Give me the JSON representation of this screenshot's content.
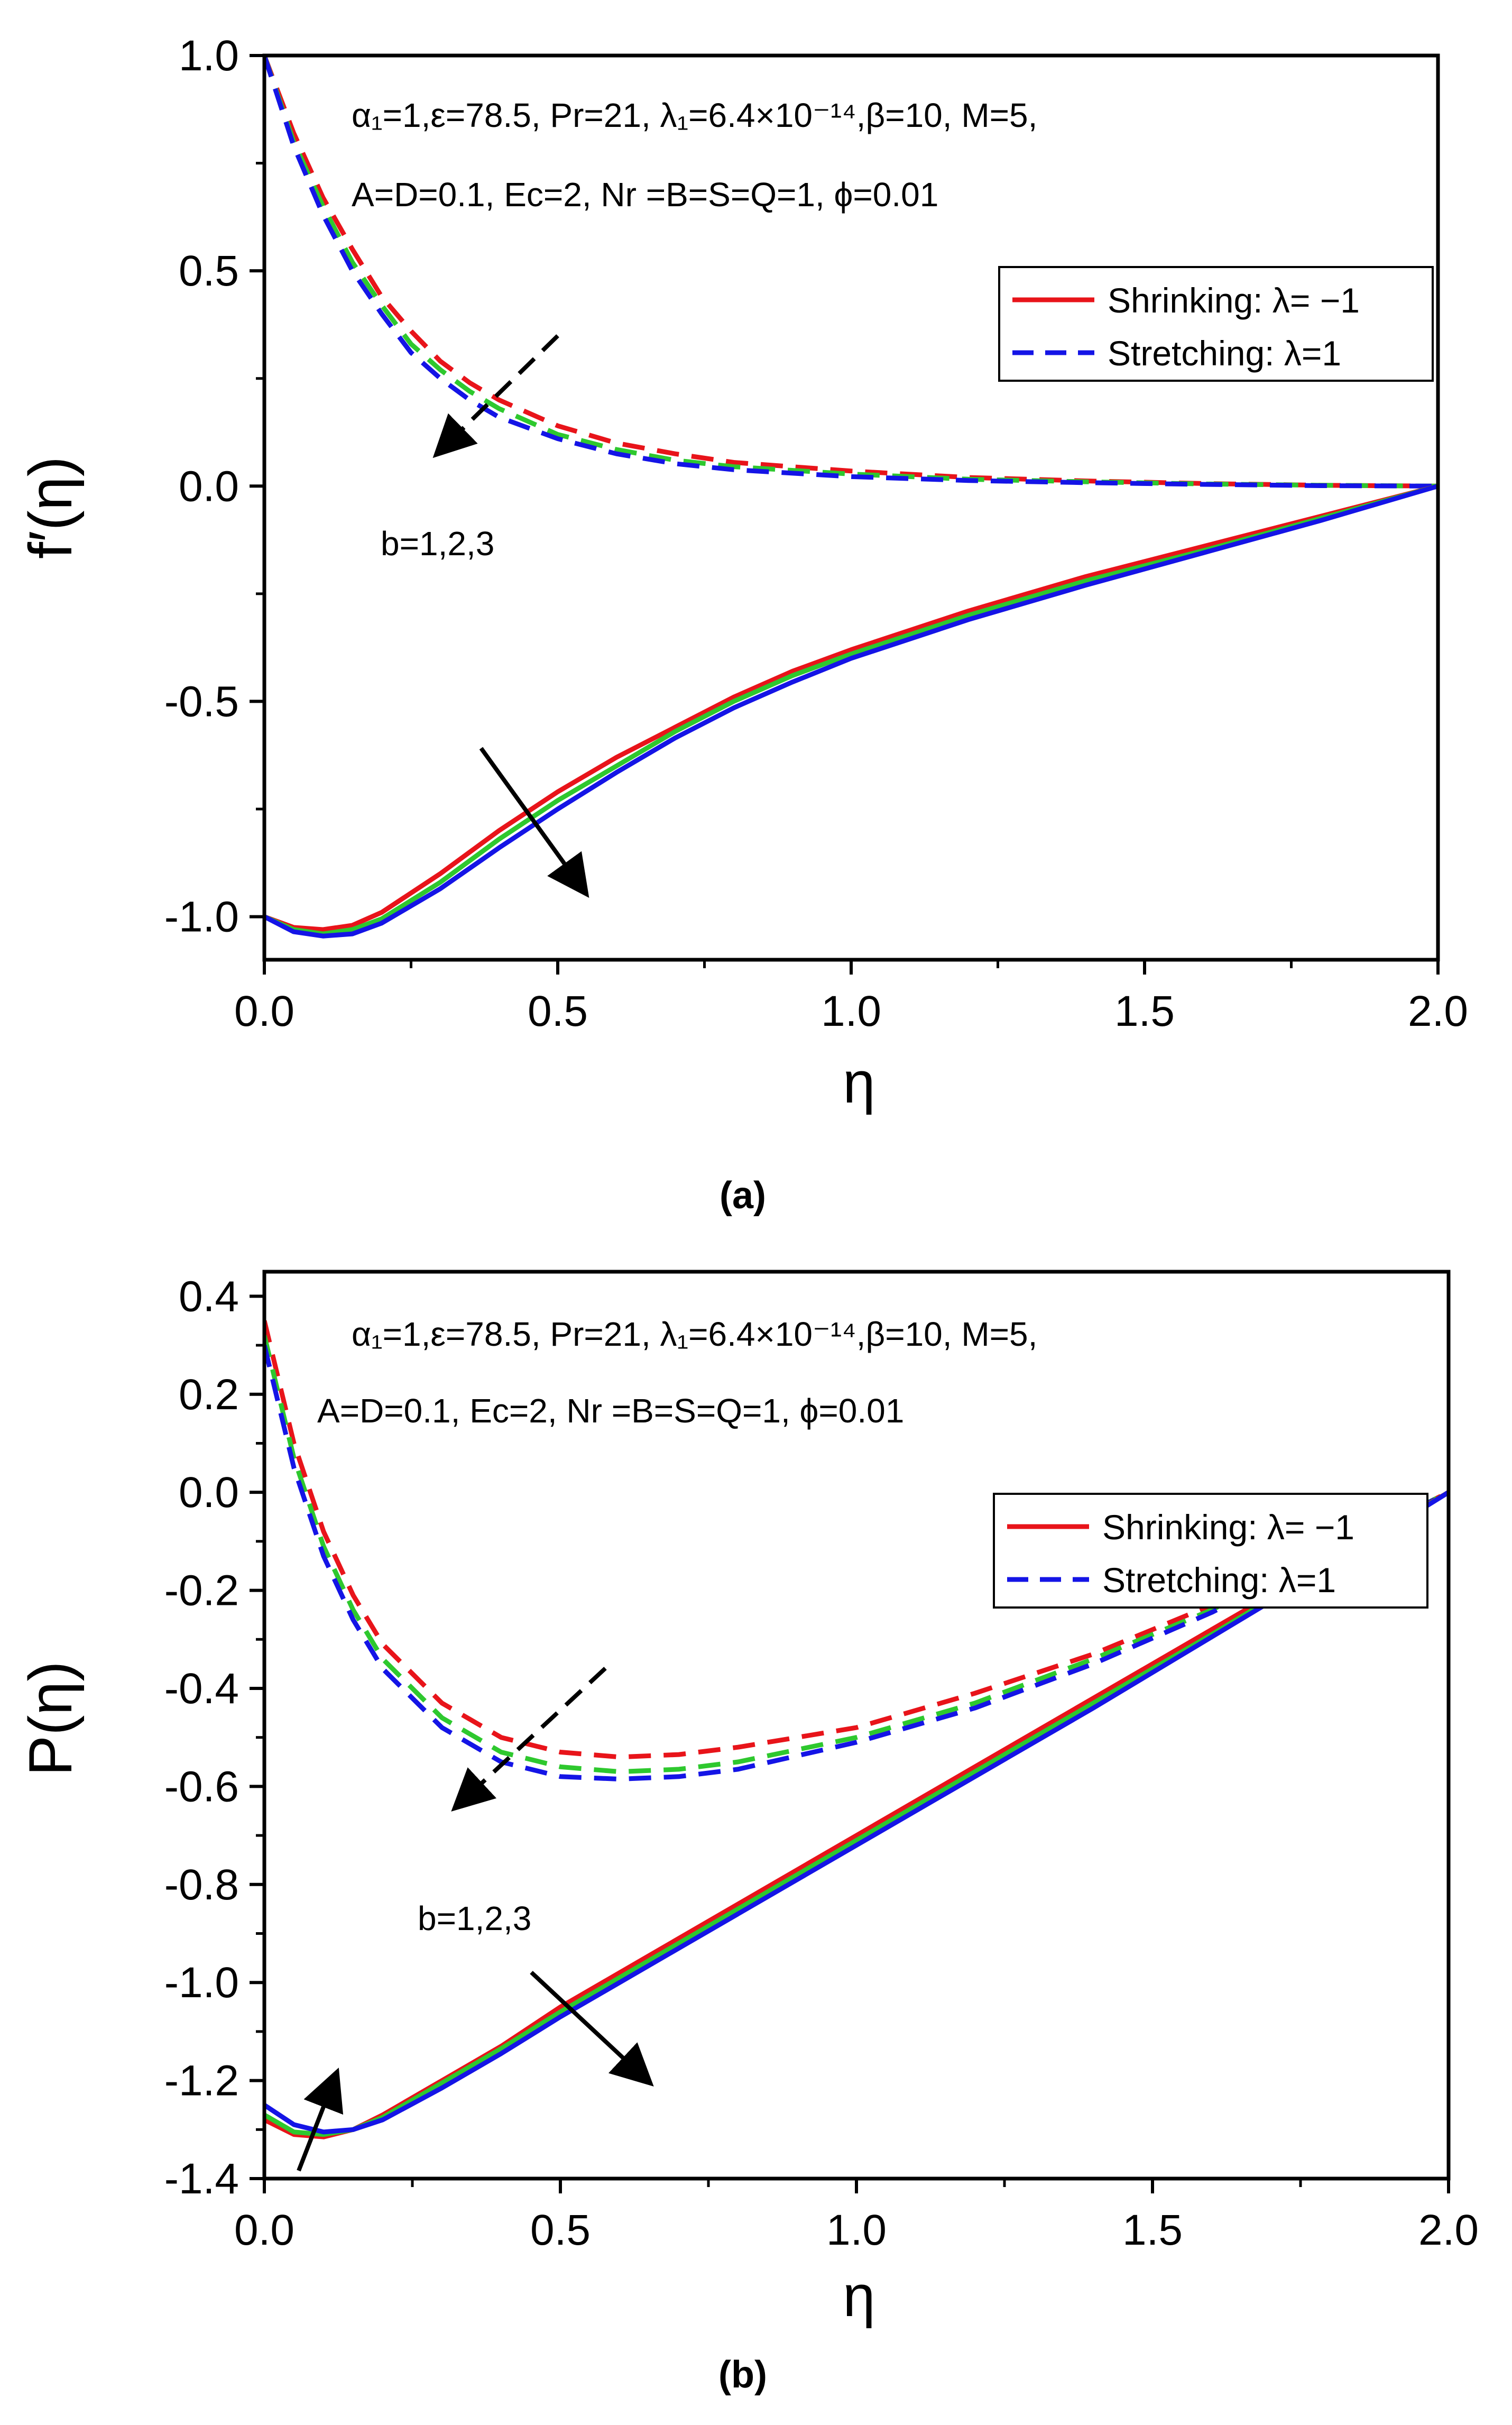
{
  "figure": {
    "colors": {
      "red": "#e8141a",
      "green": "#2ec82e",
      "blue": "#1414e6",
      "axis": "#000000"
    }
  },
  "chart_data": [
    {
      "panel": "a",
      "caption": "(a)",
      "type": "line",
      "title": "",
      "xlabel": "η",
      "ylabel": "f′(η)",
      "xlim": [
        0,
        2
      ],
      "ylim": [
        -1.1,
        1.0
      ],
      "xticks": [
        0,
        0.5,
        1,
        1.5,
        2
      ],
      "xtick_labels": [
        "0.0",
        "0.5",
        "1.0",
        "1.5",
        "2.0"
      ],
      "yticks": [
        -1,
        -0.5,
        0,
        0.5,
        1
      ],
      "ytick_labels": [
        "-1.0",
        "-0.5",
        "0.0",
        "0.5",
        "1.0"
      ],
      "annotation_lines": [
        "α₁=1,ε=78.5, Pr=21, λ₁=6.4×10⁻¹⁴,β=10, M=5,",
        "A=D=0.1, Ec=2, Nr =B=S=Q=1, ϕ=0.01"
      ],
      "param_label": "b=1,2,3",
      "legend": [
        {
          "label": "Shrinking: λ= −1",
          "style": "solid",
          "color": "#e8141a"
        },
        {
          "label": "Stretching: λ=1",
          "style": "dashed",
          "color": "#1414e6"
        }
      ],
      "legend_position": "upper-right",
      "series": [
        {
          "name": "Stretching λ=1, b=1",
          "style": "dashed",
          "color": "#e8141a",
          "x": [
            0,
            0.05,
            0.1,
            0.15,
            0.2,
            0.25,
            0.3,
            0.35,
            0.4,
            0.5,
            0.6,
            0.7,
            0.8,
            1.0,
            1.2,
            1.4,
            1.6,
            1.8,
            2.0
          ],
          "y": [
            1.0,
            0.82,
            0.67,
            0.55,
            0.44,
            0.36,
            0.29,
            0.24,
            0.2,
            0.14,
            0.1,
            0.075,
            0.055,
            0.035,
            0.02,
            0.012,
            0.006,
            0.002,
            0.0
          ]
        },
        {
          "name": "Stretching λ=1, b=2",
          "style": "dashed",
          "color": "#2ec82e",
          "x": [
            0,
            0.05,
            0.1,
            0.15,
            0.2,
            0.25,
            0.3,
            0.35,
            0.4,
            0.5,
            0.6,
            0.7,
            0.8,
            1.0,
            1.2,
            1.4,
            1.6,
            1.8,
            2.0
          ],
          "y": [
            1.0,
            0.8,
            0.65,
            0.52,
            0.42,
            0.33,
            0.27,
            0.22,
            0.18,
            0.12,
            0.085,
            0.06,
            0.045,
            0.028,
            0.016,
            0.01,
            0.005,
            0.002,
            0.0
          ]
        },
        {
          "name": "Stretching λ=1, b=3",
          "style": "dashed",
          "color": "#1414e6",
          "x": [
            0,
            0.05,
            0.1,
            0.15,
            0.2,
            0.25,
            0.3,
            0.35,
            0.4,
            0.5,
            0.6,
            0.7,
            0.8,
            1.0,
            1.2,
            1.4,
            1.6,
            1.8,
            2.0
          ],
          "y": [
            1.0,
            0.79,
            0.63,
            0.5,
            0.4,
            0.31,
            0.25,
            0.2,
            0.16,
            0.11,
            0.075,
            0.052,
            0.038,
            0.022,
            0.013,
            0.008,
            0.004,
            0.001,
            0.0
          ]
        },
        {
          "name": "Shrinking λ=-1, b=1",
          "style": "solid",
          "color": "#e8141a",
          "x": [
            0,
            0.05,
            0.1,
            0.15,
            0.2,
            0.3,
            0.4,
            0.5,
            0.6,
            0.7,
            0.8,
            0.9,
            1.0,
            1.2,
            1.4,
            1.6,
            1.8,
            2.0
          ],
          "y": [
            -1.0,
            -1.025,
            -1.03,
            -1.02,
            -0.99,
            -0.9,
            -0.8,
            -0.71,
            -0.63,
            -0.56,
            -0.49,
            -0.43,
            -0.38,
            -0.29,
            -0.21,
            -0.14,
            -0.07,
            0.0
          ]
        },
        {
          "name": "Shrinking λ=-1, b=2",
          "style": "solid",
          "color": "#2ec82e",
          "x": [
            0,
            0.05,
            0.1,
            0.15,
            0.2,
            0.3,
            0.4,
            0.5,
            0.6,
            0.7,
            0.8,
            0.9,
            1.0,
            1.2,
            1.4,
            1.6,
            1.8,
            2.0
          ],
          "y": [
            -1.0,
            -1.03,
            -1.04,
            -1.03,
            -1.005,
            -0.92,
            -0.82,
            -0.73,
            -0.65,
            -0.57,
            -0.5,
            -0.44,
            -0.39,
            -0.3,
            -0.22,
            -0.15,
            -0.075,
            0.0
          ]
        },
        {
          "name": "Shrinking λ=-1, b=3",
          "style": "solid",
          "color": "#1414e6",
          "x": [
            0,
            0.05,
            0.1,
            0.15,
            0.2,
            0.3,
            0.4,
            0.5,
            0.6,
            0.7,
            0.8,
            0.9,
            1.0,
            1.2,
            1.4,
            1.6,
            1.8,
            2.0
          ],
          "y": [
            -1.0,
            -1.035,
            -1.045,
            -1.04,
            -1.015,
            -0.935,
            -0.84,
            -0.75,
            -0.665,
            -0.585,
            -0.515,
            -0.455,
            -0.4,
            -0.31,
            -0.23,
            -0.155,
            -0.08,
            0.0
          ]
        }
      ]
    },
    {
      "panel": "b",
      "caption": "(b)",
      "type": "line",
      "title": "",
      "xlabel": "η",
      "ylabel": "P(η)",
      "xlim": [
        0,
        2
      ],
      "ylim": [
        -1.4,
        0.45
      ],
      "xticks": [
        0,
        0.5,
        1,
        1.5,
        2
      ],
      "xtick_labels": [
        "0.0",
        "0.5",
        "1.0",
        "1.5",
        "2.0"
      ],
      "yticks": [
        -1.4,
        -1.2,
        -1.0,
        -0.8,
        -0.6,
        -0.4,
        -0.2,
        0,
        0.2,
        0.4
      ],
      "ytick_labels": [
        "-1.4",
        "-1.2",
        "-1.0",
        "-0.8",
        "-0.6",
        "-0.4",
        "-0.2",
        "0.0",
        "0.2",
        "0.4"
      ],
      "annotation_lines": [
        "α₁=1,ε=78.5, Pr=21, λ₁=6.4×10⁻¹⁴,β=10, M=5,",
        "A=D=0.1, Ec=2, Nr =B=S=Q=1, ϕ=0.01"
      ],
      "param_label": "b=1,2,3",
      "legend": [
        {
          "label": "Shrinking: λ= −1",
          "style": "solid",
          "color": "#e8141a"
        },
        {
          "label": "Stretching: λ=1",
          "style": "dashed",
          "color": "#1414e6"
        }
      ],
      "legend_position": "center-right",
      "series": [
        {
          "name": "Stretching λ=1, b=1",
          "style": "dashed",
          "color": "#e8141a",
          "x": [
            0,
            0.05,
            0.1,
            0.15,
            0.2,
            0.3,
            0.4,
            0.5,
            0.6,
            0.7,
            0.8,
            1.0,
            1.2,
            1.4,
            1.6,
            1.8,
            2.0
          ],
          "y": [
            0.35,
            0.1,
            -0.08,
            -0.21,
            -0.31,
            -0.43,
            -0.5,
            -0.53,
            -0.54,
            -0.535,
            -0.52,
            -0.48,
            -0.41,
            -0.33,
            -0.23,
            -0.12,
            0.0
          ]
        },
        {
          "name": "Stretching λ=1, b=2",
          "style": "dashed",
          "color": "#2ec82e",
          "x": [
            0,
            0.05,
            0.1,
            0.15,
            0.2,
            0.3,
            0.4,
            0.5,
            0.6,
            0.7,
            0.8,
            1.0,
            1.2,
            1.4,
            1.6,
            1.8,
            2.0
          ],
          "y": [
            0.32,
            0.07,
            -0.11,
            -0.24,
            -0.34,
            -0.46,
            -0.53,
            -0.56,
            -0.57,
            -0.565,
            -0.55,
            -0.5,
            -0.43,
            -0.34,
            -0.24,
            -0.12,
            0.0
          ]
        },
        {
          "name": "Stretching λ=1, b=3",
          "style": "dashed",
          "color": "#1414e6",
          "x": [
            0,
            0.05,
            0.1,
            0.15,
            0.2,
            0.3,
            0.4,
            0.5,
            0.6,
            0.7,
            0.8,
            1.0,
            1.2,
            1.4,
            1.6,
            1.8,
            2.0
          ],
          "y": [
            0.3,
            0.05,
            -0.13,
            -0.26,
            -0.36,
            -0.48,
            -0.55,
            -0.58,
            -0.585,
            -0.58,
            -0.565,
            -0.51,
            -0.44,
            -0.35,
            -0.245,
            -0.125,
            0.0
          ]
        },
        {
          "name": "Shrinking λ=-1, b=1",
          "style": "solid",
          "color": "#e8141a",
          "x": [
            0,
            0.05,
            0.1,
            0.15,
            0.2,
            0.3,
            0.4,
            0.5,
            0.6,
            0.8,
            1.0,
            1.2,
            1.4,
            1.6,
            1.8,
            2.0
          ],
          "y": [
            -1.28,
            -1.31,
            -1.315,
            -1.3,
            -1.27,
            -1.2,
            -1.13,
            -1.05,
            -0.98,
            -0.84,
            -0.7,
            -0.56,
            -0.42,
            -0.28,
            -0.14,
            0.0
          ]
        },
        {
          "name": "Shrinking λ=-1, b=2",
          "style": "solid",
          "color": "#2ec82e",
          "x": [
            0,
            0.05,
            0.1,
            0.15,
            0.2,
            0.3,
            0.4,
            0.5,
            0.6,
            0.8,
            1.0,
            1.2,
            1.4,
            1.6,
            1.8,
            2.0
          ],
          "y": [
            -1.27,
            -1.305,
            -1.31,
            -1.3,
            -1.275,
            -1.205,
            -1.135,
            -1.06,
            -0.99,
            -0.85,
            -0.71,
            -0.57,
            -0.43,
            -0.29,
            -0.145,
            0.0
          ]
        },
        {
          "name": "Shrinking λ=-1, b=3",
          "style": "solid",
          "color": "#1414e6",
          "x": [
            0,
            0.05,
            0.1,
            0.15,
            0.2,
            0.3,
            0.4,
            0.5,
            0.6,
            0.8,
            1.0,
            1.2,
            1.4,
            1.6,
            1.8,
            2.0
          ],
          "y": [
            -1.25,
            -1.29,
            -1.305,
            -1.3,
            -1.28,
            -1.215,
            -1.145,
            -1.07,
            -1.0,
            -0.86,
            -0.72,
            -0.58,
            -0.44,
            -0.295,
            -0.15,
            0.0
          ]
        }
      ]
    }
  ]
}
